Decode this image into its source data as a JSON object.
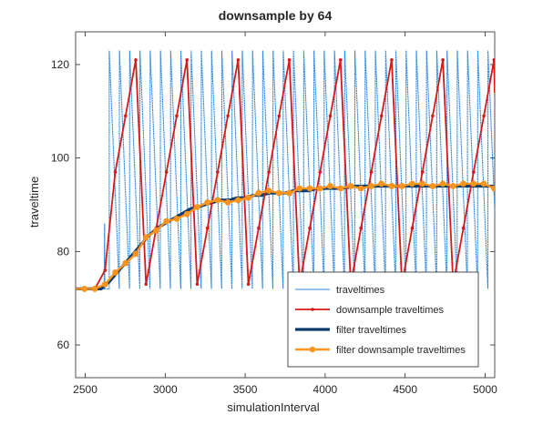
{
  "chart_data": {
    "type": "line",
    "title": "downsample by 64",
    "xlabel": "simulationInterval",
    "ylabel": "traveltime",
    "xlim": [
      2440,
      5060
    ],
    "ylim": [
      53,
      127
    ],
    "xticks": [
      "2500",
      "3000",
      "3500",
      "4000",
      "4500",
      "5000"
    ],
    "yticks": [
      "60",
      "80",
      "100",
      "120"
    ],
    "grid": false,
    "legend_position": "bottom-right",
    "series": [
      {
        "name": "traveltimes",
        "color": "#2e86de",
        "style": "sawtooth",
        "ramp_start_x": 2650,
        "period": 64,
        "low": 72,
        "high": 123,
        "pre_ramp_value": 72,
        "spike": {
          "x": 2622,
          "y": 86
        }
      },
      {
        "name": "downsample traveltimes",
        "color": "#d7191c",
        "x": [
          2440,
          2560,
          2624,
          2688,
          2752,
          2816,
          2880,
          2944,
          3008,
          3072,
          3136,
          3200,
          3264,
          3328,
          3392,
          3456,
          3520,
          3584,
          3648,
          3712,
          3776,
          3840,
          3904,
          3968,
          4032,
          4096,
          4160,
          4224,
          4288,
          4352,
          4416,
          4480,
          4544,
          4608,
          4672,
          4736,
          4800,
          4864,
          4928,
          4992,
          5056,
          5060
        ],
        "y": [
          72,
          72,
          76,
          97,
          109,
          121,
          73,
          85,
          97,
          109,
          121,
          73,
          85,
          97,
          109,
          121,
          73,
          85,
          97,
          109,
          121,
          73,
          85,
          97,
          109,
          121,
          73,
          85,
          97,
          109,
          121,
          73,
          85,
          97,
          109,
          121,
          73,
          85,
          97,
          109,
          121,
          114
        ]
      },
      {
        "name": "filter traveltimes",
        "color": "#0b3c6e",
        "x": [
          2440,
          2600,
          2650,
          2700,
          2750,
          2800,
          2850,
          2900,
          2950,
          3000,
          3050,
          3100,
          3150,
          3200,
          3250,
          3300,
          3350,
          3400,
          3450,
          3500,
          3550,
          3600,
          3650,
          3700,
          3750,
          3800,
          3850,
          3900,
          3950,
          4000,
          4100,
          4200,
          4300,
          4400,
          4500,
          4600,
          4700,
          4800,
          4900,
          5000,
          5060
        ],
        "y": [
          72,
          72,
          73.5,
          75.5,
          77.5,
          79.5,
          81.5,
          83.5,
          85,
          86,
          87,
          88,
          89,
          89.5,
          90,
          90.5,
          91,
          91,
          91.5,
          91.5,
          92,
          92,
          92.5,
          92.5,
          92.5,
          93,
          93,
          93,
          93.5,
          93.5,
          93.5,
          94,
          94,
          94,
          94,
          94,
          94,
          94,
          94,
          94,
          94
        ]
      },
      {
        "name": "filter downsample traveltimes",
        "color": "#f7941d",
        "x": [
          2440,
          2495,
          2560,
          2624,
          2688,
          2752,
          2816,
          2880,
          2944,
          3008,
          3072,
          3136,
          3200,
          3264,
          3328,
          3392,
          3456,
          3520,
          3584,
          3648,
          3712,
          3776,
          3840,
          3904,
          3968,
          4032,
          4096,
          4160,
          4224,
          4288,
          4352,
          4416,
          4480,
          4544,
          4608,
          4672,
          4736,
          4800,
          4864,
          4928,
          4992,
          5056
        ],
        "y": [
          72,
          72,
          72,
          73,
          75.5,
          77.5,
          79.5,
          83,
          84.5,
          86.5,
          87,
          88,
          89.5,
          90.5,
          91,
          90.5,
          91,
          91.5,
          92.5,
          93,
          92.5,
          92.5,
          93.5,
          93.5,
          93.5,
          94,
          93.5,
          94,
          93.5,
          94,
          94.5,
          94,
          94,
          94.5,
          94.5,
          94,
          94.5,
          94,
          94.5,
          94.5,
          94.5,
          93.5
        ]
      }
    ]
  }
}
